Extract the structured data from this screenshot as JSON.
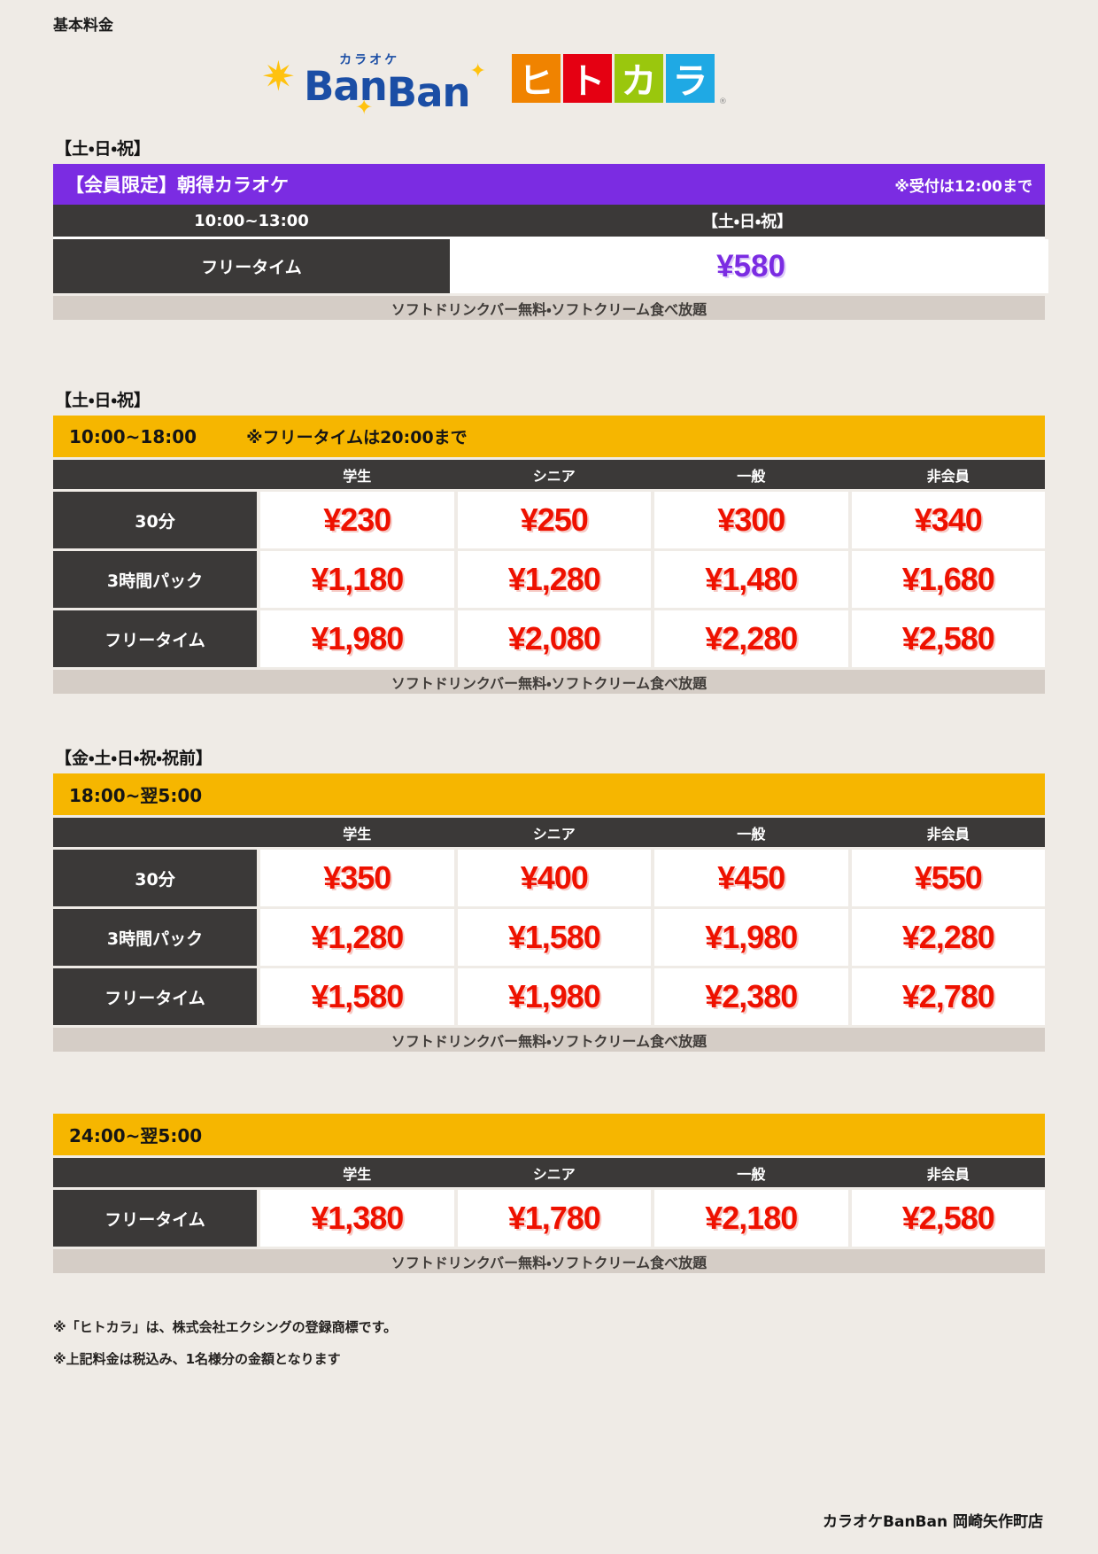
{
  "page": {
    "heading": "基本料金",
    "store_name": "カラオケBanBan 岡崎矢作町店",
    "notes": [
      "※「ヒトカラ」は、株式会社エクシングの登録商標です。",
      "※上記料金は税込み、1名様分の金額となります"
    ]
  },
  "logos": {
    "banban": {
      "kana": "カラオケ",
      "name1": "Ban",
      "name2": "Ban"
    },
    "hitokara": {
      "chars": [
        "ヒ",
        "ト",
        "カ",
        "ラ"
      ],
      "reg": "®"
    }
  },
  "colors": {
    "page_background": "#EFEBE6",
    "purple": "#7B2CE2",
    "yellow": "#F6B600",
    "dark_bar": "#3B3938",
    "price_red": "#EE1100",
    "strip_gray": "#D5CDC6",
    "hitokara_orange": "#F08300",
    "hitokara_red": "#E50012",
    "hitokara_green": "#9AC70D",
    "hitokara_blue": "#1FA9E4"
  },
  "morning": {
    "day_label": "【土・日・祝】",
    "banner_title": "【会員限定】朝得カラオケ",
    "banner_note": "※受付は12:00まで",
    "time": "10:00~13:00",
    "time_day": "【土・日・祝】",
    "plan": "フリータイム",
    "price": "¥580",
    "footer": "ソフトドリンクバー無料・ソフトクリーム食べ放題"
  },
  "day_table": {
    "day_label": "【土・日・祝】",
    "time": "10:00~18:00",
    "time_note": "※フリータイムは20:00まで",
    "columns": [
      "学生",
      "シニア",
      "一般",
      "非会員"
    ],
    "rows": [
      {
        "plan": "30分",
        "prices": [
          "¥230",
          "¥250",
          "¥300",
          "¥340"
        ]
      },
      {
        "plan": "3時間パック",
        "prices": [
          "¥1,180",
          "¥1,280",
          "¥1,480",
          "¥1,680"
        ]
      },
      {
        "plan": "フリータイム",
        "prices": [
          "¥1,980",
          "¥2,080",
          "¥2,280",
          "¥2,580"
        ]
      }
    ],
    "footer": "ソフトドリンクバー無料・ソフトクリーム食べ放題"
  },
  "night_table": {
    "day_label": "【金・土・日・祝・祝前】",
    "time": "18:00~翌5:00",
    "columns": [
      "学生",
      "シニア",
      "一般",
      "非会員"
    ],
    "rows": [
      {
        "plan": "30分",
        "prices": [
          "¥350",
          "¥400",
          "¥450",
          "¥550"
        ]
      },
      {
        "plan": "3時間パック",
        "prices": [
          "¥1,280",
          "¥1,580",
          "¥1,980",
          "¥2,280"
        ]
      },
      {
        "plan": "フリータイム",
        "prices": [
          "¥1,580",
          "¥1,980",
          "¥2,380",
          "¥2,780"
        ]
      }
    ],
    "footer": "ソフトドリンクバー無料・ソフトクリーム食べ放題"
  },
  "late_table": {
    "time": "24:00~翌5:00",
    "columns": [
      "学生",
      "シニア",
      "一般",
      "非会員"
    ],
    "rows": [
      {
        "plan": "フリータイム",
        "prices": [
          "¥1,380",
          "¥1,780",
          "¥2,180",
          "¥2,580"
        ]
      }
    ],
    "footer": "ソフトドリンクバー無料・ソフトクリーム食べ放題"
  }
}
